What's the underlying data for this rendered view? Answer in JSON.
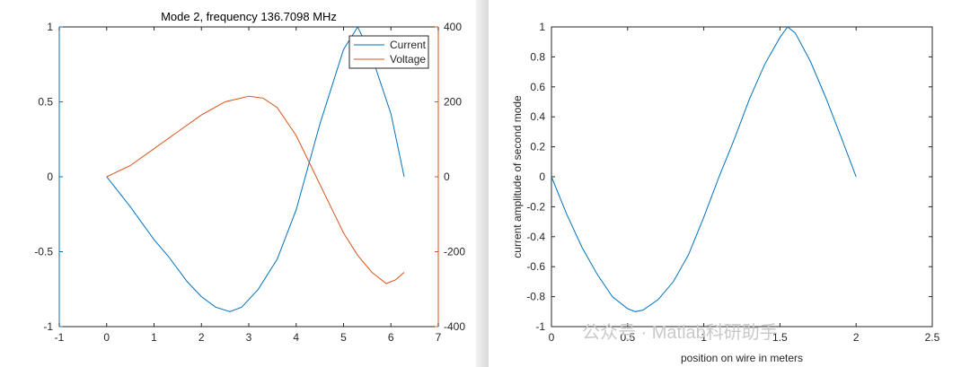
{
  "colors": {
    "current": "#0072BD",
    "voltage": "#D95319",
    "axis": "#262626",
    "watermark": "#c9c9c9"
  },
  "chart_data": [
    {
      "type": "line",
      "title": "Mode 2, frequency 136.7098 MHz",
      "xlabel": "",
      "ylabel": "",
      "xlim": [
        -1,
        7
      ],
      "ylim": [
        -1,
        1
      ],
      "y2lim": [
        -400,
        400
      ],
      "xticks": [
        "-1",
        "0",
        "1",
        "2",
        "3",
        "4",
        "5",
        "6",
        "7"
      ],
      "yticks": [
        "-1",
        "-0.5",
        "0",
        "0.5",
        "1"
      ],
      "y2ticks": [
        "-400",
        "-200",
        "0",
        "200",
        "400"
      ],
      "grid": false,
      "legend": "top-right",
      "series": [
        {
          "name": "Current",
          "axis": "left",
          "color": "#0072BD",
          "x": [
            0,
            0.5,
            1,
            1.3,
            1.7,
            2,
            2.3,
            2.6,
            2.85,
            3.2,
            3.6,
            4,
            4.5,
            5,
            5.3,
            5.6,
            6,
            6.28
          ],
          "y": [
            0,
            -0.2,
            -0.42,
            -0.53,
            -0.7,
            -0.8,
            -0.87,
            -0.9,
            -0.87,
            -0.75,
            -0.55,
            -0.22,
            0.35,
            0.85,
            1.0,
            0.8,
            0.42,
            0.0
          ]
        },
        {
          "name": "Voltage",
          "axis": "right",
          "color": "#D95319",
          "x": [
            0,
            0.5,
            1,
            1.5,
            2,
            2.5,
            3,
            3.3,
            3.6,
            4,
            4.5,
            5,
            5.3,
            5.6,
            5.9,
            6.1,
            6.28
          ],
          "y": [
            0,
            30,
            75,
            120,
            165,
            200,
            215,
            210,
            185,
            110,
            -20,
            -150,
            -210,
            -255,
            -285,
            -275,
            -255
          ]
        }
      ]
    },
    {
      "type": "line",
      "title": "",
      "xlabel": "position on wire in meters",
      "ylabel": "current amplitude of second mode",
      "xlim": [
        0,
        2.5
      ],
      "ylim": [
        -1,
        1
      ],
      "xticks": [
        "0",
        "0.5",
        "1",
        "1.5",
        "2",
        "2.5"
      ],
      "yticks": [
        "-1",
        "-0.8",
        "-0.6",
        "-0.4",
        "-0.2",
        "0",
        "0.2",
        "0.4",
        "0.6",
        "0.8",
        "1"
      ],
      "grid": false,
      "legend": "none",
      "series": [
        {
          "color": "#0072BD",
          "x": [
            0,
            0.1,
            0.2,
            0.3,
            0.4,
            0.5,
            0.55,
            0.6,
            0.7,
            0.8,
            0.9,
            1.0,
            1.1,
            1.2,
            1.3,
            1.4,
            1.5,
            1.55,
            1.6,
            1.7,
            1.8,
            1.9,
            2.0
          ],
          "y": [
            0,
            -0.25,
            -0.47,
            -0.65,
            -0.8,
            -0.88,
            -0.9,
            -0.89,
            -0.82,
            -0.7,
            -0.52,
            -0.27,
            0.0,
            0.25,
            0.52,
            0.75,
            0.93,
            1.0,
            0.96,
            0.77,
            0.53,
            0.27,
            0.0
          ]
        }
      ]
    }
  ],
  "watermark": {
    "text": "公众号 · Matlab科研助手"
  }
}
